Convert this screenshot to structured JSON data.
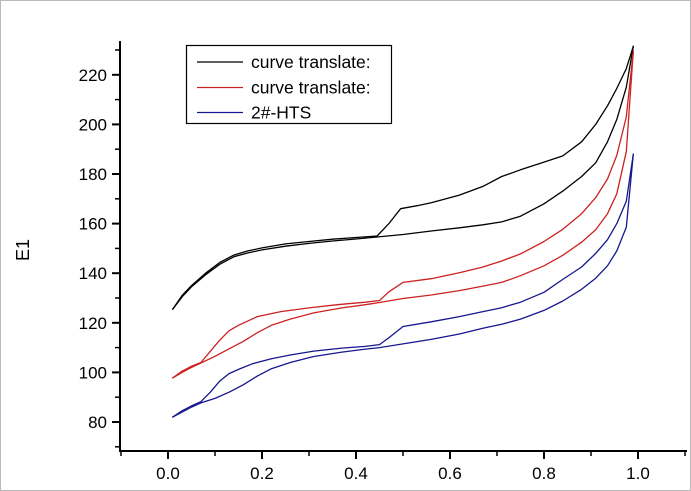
{
  "chart_data": {
    "type": "line",
    "title": "",
    "xlabel": "",
    "ylabel": "E1",
    "xlim": [
      -0.1,
      1.1
    ],
    "ylim": [
      68,
      234
    ],
    "grid": false,
    "x_major_ticks": [
      0.0,
      0.2,
      0.4,
      0.6,
      0.8,
      1.0
    ],
    "x_tick_labels": [
      "0.0",
      "0.2",
      "0.4",
      "0.6",
      "0.8",
      "1.0"
    ],
    "x_minor_ticks": [
      -0.1,
      0.1,
      0.3,
      0.5,
      0.7,
      0.9,
      1.1
    ],
    "y_major_ticks": [
      80,
      100,
      120,
      140,
      160,
      180,
      200,
      220
    ],
    "y_tick_labels": [
      "80",
      "100",
      "120",
      "140",
      "160",
      "180",
      "200",
      "220"
    ],
    "y_minor_ticks": [
      70,
      90,
      110,
      130,
      150,
      170,
      190,
      210,
      230
    ],
    "legend_position": "top-center-inside",
    "legend": [
      {
        "label": "curve translate:",
        "color": "#000000"
      },
      {
        "label": "curve translate:",
        "color": "#cc2222"
      },
      {
        "label": "2#-HTS",
        "color": "#16168f"
      }
    ],
    "series": [
      {
        "name": "black-upper-desorption",
        "legend_label": "curve translate:",
        "color": "#000000",
        "points": [
          [
            0.01,
            125.5
          ],
          [
            0.03,
            131.0
          ],
          [
            0.05,
            135.0
          ],
          [
            0.08,
            140.0
          ],
          [
            0.11,
            144.3
          ],
          [
            0.14,
            147.3
          ],
          [
            0.17,
            149.0
          ],
          [
            0.2,
            150.2
          ],
          [
            0.25,
            151.8
          ],
          [
            0.3,
            152.8
          ],
          [
            0.35,
            153.7
          ],
          [
            0.4,
            154.4
          ],
          [
            0.445,
            155.0
          ],
          [
            0.47,
            160.0
          ],
          [
            0.495,
            166.0
          ],
          [
            0.53,
            167.2
          ],
          [
            0.56,
            168.4
          ],
          [
            0.62,
            171.5
          ],
          [
            0.67,
            175.0
          ],
          [
            0.71,
            179.0
          ],
          [
            0.75,
            181.7
          ],
          [
            0.8,
            184.8
          ],
          [
            0.84,
            187.3
          ],
          [
            0.88,
            193.0
          ],
          [
            0.91,
            200.0
          ],
          [
            0.935,
            207.5
          ],
          [
            0.955,
            214.5
          ],
          [
            0.975,
            222.5
          ],
          [
            0.99,
            231.5
          ]
        ]
      },
      {
        "name": "black-lower-adsorption",
        "legend_label": "curve translate:",
        "color": "#000000",
        "points": [
          [
            0.01,
            125.5
          ],
          [
            0.03,
            130.5
          ],
          [
            0.05,
            134.5
          ],
          [
            0.08,
            139.4
          ],
          [
            0.11,
            143.6
          ],
          [
            0.14,
            146.6
          ],
          [
            0.17,
            148.2
          ],
          [
            0.2,
            149.4
          ],
          [
            0.25,
            150.9
          ],
          [
            0.3,
            152.0
          ],
          [
            0.35,
            153.0
          ],
          [
            0.4,
            153.8
          ],
          [
            0.445,
            154.6
          ],
          [
            0.5,
            155.6
          ],
          [
            0.56,
            157.0
          ],
          [
            0.62,
            158.3
          ],
          [
            0.67,
            159.5
          ],
          [
            0.71,
            160.7
          ],
          [
            0.75,
            163.0
          ],
          [
            0.8,
            168.0
          ],
          [
            0.84,
            173.1
          ],
          [
            0.88,
            179.0
          ],
          [
            0.91,
            184.5
          ],
          [
            0.935,
            193.0
          ],
          [
            0.955,
            202.0
          ],
          [
            0.975,
            215.0
          ],
          [
            0.99,
            231.5
          ]
        ]
      },
      {
        "name": "red-upper-desorption",
        "legend_label": "curve translate:",
        "color": "#cc2222",
        "points": [
          [
            0.01,
            97.8
          ],
          [
            0.03,
            100.5
          ],
          [
            0.05,
            102.5
          ],
          [
            0.07,
            104.0
          ],
          [
            0.09,
            108.5
          ],
          [
            0.11,
            113.0
          ],
          [
            0.13,
            116.8
          ],
          [
            0.15,
            119.0
          ],
          [
            0.19,
            122.5
          ],
          [
            0.24,
            124.5
          ],
          [
            0.3,
            126.0
          ],
          [
            0.36,
            127.3
          ],
          [
            0.42,
            128.3
          ],
          [
            0.45,
            129.0
          ],
          [
            0.47,
            132.5
          ],
          [
            0.5,
            136.3
          ],
          [
            0.56,
            137.8
          ],
          [
            0.62,
            140.2
          ],
          [
            0.67,
            142.5
          ],
          [
            0.71,
            144.9
          ],
          [
            0.75,
            147.8
          ],
          [
            0.8,
            152.8
          ],
          [
            0.84,
            157.7
          ],
          [
            0.88,
            164.0
          ],
          [
            0.91,
            170.5
          ],
          [
            0.935,
            178.0
          ],
          [
            0.955,
            187.5
          ],
          [
            0.975,
            203.0
          ],
          [
            0.99,
            229.5
          ]
        ]
      },
      {
        "name": "red-lower-adsorption",
        "legend_label": "curve translate:",
        "color": "#cc2222",
        "points": [
          [
            0.01,
            97.8
          ],
          [
            0.03,
            100.0
          ],
          [
            0.05,
            102.0
          ],
          [
            0.07,
            103.8
          ],
          [
            0.1,
            106.5
          ],
          [
            0.13,
            109.5
          ],
          [
            0.16,
            112.5
          ],
          [
            0.19,
            116.0
          ],
          [
            0.22,
            119.0
          ],
          [
            0.26,
            121.5
          ],
          [
            0.31,
            124.0
          ],
          [
            0.37,
            126.0
          ],
          [
            0.42,
            127.3
          ],
          [
            0.45,
            128.2
          ],
          [
            0.5,
            129.8
          ],
          [
            0.56,
            131.2
          ],
          [
            0.62,
            133.0
          ],
          [
            0.67,
            134.8
          ],
          [
            0.71,
            136.3
          ],
          [
            0.75,
            139.0
          ],
          [
            0.8,
            143.0
          ],
          [
            0.84,
            147.2
          ],
          [
            0.88,
            152.5
          ],
          [
            0.91,
            157.5
          ],
          [
            0.935,
            164.0
          ],
          [
            0.955,
            172.0
          ],
          [
            0.975,
            189.0
          ],
          [
            0.99,
            229.5
          ]
        ]
      },
      {
        "name": "blue-upper-desorption",
        "legend_label": "2#-HTS",
        "color": "#16168f",
        "points": [
          [
            0.01,
            82.0
          ],
          [
            0.03,
            84.5
          ],
          [
            0.05,
            86.5
          ],
          [
            0.07,
            88.2
          ],
          [
            0.09,
            92.0
          ],
          [
            0.11,
            96.5
          ],
          [
            0.13,
            99.5
          ],
          [
            0.15,
            101.2
          ],
          [
            0.18,
            103.5
          ],
          [
            0.22,
            105.5
          ],
          [
            0.26,
            107.0
          ],
          [
            0.31,
            108.6
          ],
          [
            0.37,
            109.8
          ],
          [
            0.42,
            110.5
          ],
          [
            0.45,
            111.2
          ],
          [
            0.47,
            114.0
          ],
          [
            0.5,
            118.5
          ],
          [
            0.56,
            120.4
          ],
          [
            0.62,
            122.5
          ],
          [
            0.67,
            124.5
          ],
          [
            0.71,
            126.1
          ],
          [
            0.75,
            128.3
          ],
          [
            0.8,
            132.3
          ],
          [
            0.84,
            137.5
          ],
          [
            0.88,
            142.5
          ],
          [
            0.91,
            148.0
          ],
          [
            0.935,
            153.5
          ],
          [
            0.955,
            160.0
          ],
          [
            0.975,
            169.0
          ],
          [
            0.99,
            188.0
          ]
        ]
      },
      {
        "name": "blue-lower-adsorption",
        "legend_label": "2#-HTS",
        "color": "#16168f",
        "points": [
          [
            0.01,
            82.0
          ],
          [
            0.03,
            84.0
          ],
          [
            0.05,
            86.0
          ],
          [
            0.07,
            87.7
          ],
          [
            0.1,
            89.5
          ],
          [
            0.13,
            92.0
          ],
          [
            0.16,
            95.0
          ],
          [
            0.19,
            98.5
          ],
          [
            0.22,
            101.5
          ],
          [
            0.26,
            104.0
          ],
          [
            0.31,
            106.4
          ],
          [
            0.37,
            108.2
          ],
          [
            0.42,
            109.4
          ],
          [
            0.45,
            110.0
          ],
          [
            0.5,
            111.5
          ],
          [
            0.56,
            113.3
          ],
          [
            0.62,
            115.5
          ],
          [
            0.67,
            117.8
          ],
          [
            0.71,
            119.4
          ],
          [
            0.75,
            121.5
          ],
          [
            0.8,
            125.0
          ],
          [
            0.84,
            128.8
          ],
          [
            0.88,
            133.5
          ],
          [
            0.91,
            138.0
          ],
          [
            0.935,
            143.0
          ],
          [
            0.955,
            149.0
          ],
          [
            0.975,
            158.5
          ],
          [
            0.99,
            188.0
          ]
        ]
      }
    ]
  }
}
